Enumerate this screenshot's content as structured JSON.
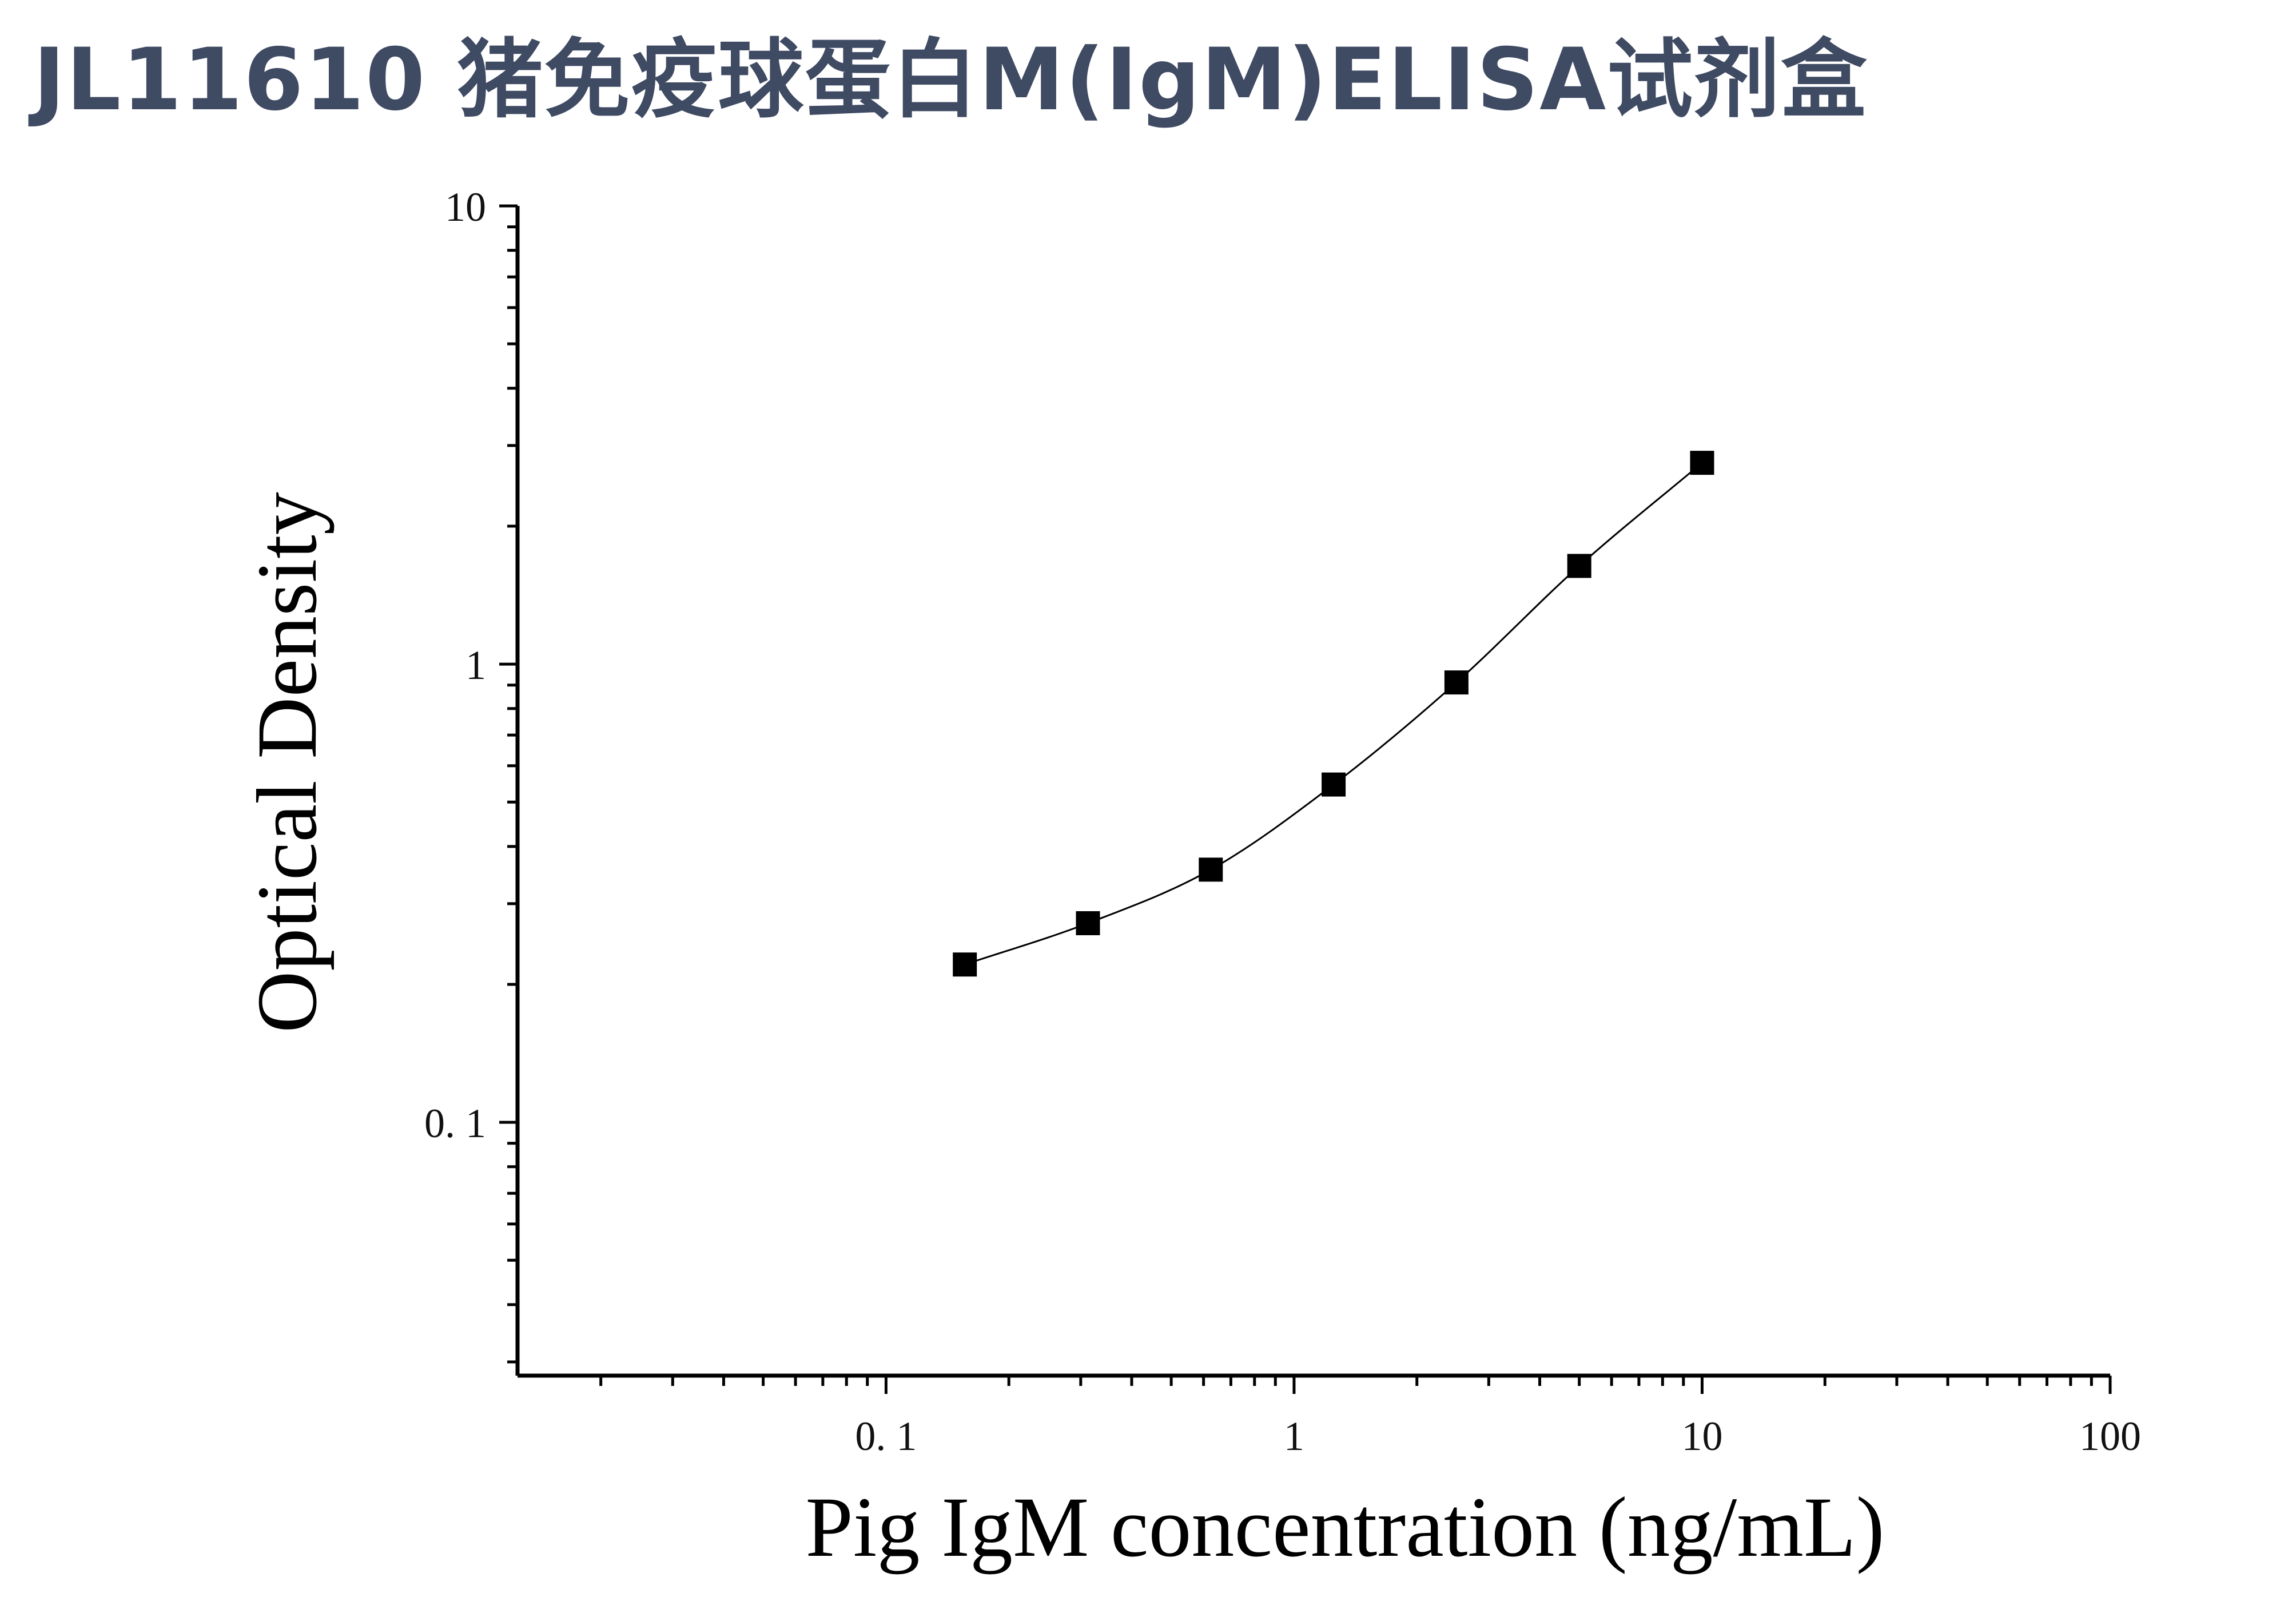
{
  "title": "JL11610 猪免疫球蛋白M(IgM)ELISA试剂盒",
  "colors": {
    "title": "#3f4a63",
    "axis": "#000000",
    "marker": "#000000",
    "curve": "#000000"
  },
  "chart_data": {
    "type": "scatter",
    "xscale": "log",
    "yscale": "log",
    "xlabel": "Pig IgM concentration (ng/mL)",
    "ylabel": "Optical Density",
    "xlim": [
      0.0125,
      100
    ],
    "ylim": [
      0.028,
      10
    ],
    "x_ticks": [
      {
        "value": 0.1,
        "label": "0. 1"
      },
      {
        "value": 1,
        "label": "1"
      },
      {
        "value": 10,
        "label": "10"
      },
      {
        "value": 100,
        "label": "100"
      }
    ],
    "y_ticks": [
      {
        "value": 0.1,
        "label": "0. 1"
      },
      {
        "value": 1,
        "label": "1"
      },
      {
        "value": 10,
        "label": "10"
      }
    ],
    "grid": false,
    "legend": "none",
    "marker": "square",
    "fit_line": true,
    "series": [
      {
        "x": [
          0.156,
          0.3125,
          0.625,
          1.25,
          2.5,
          5,
          10
        ],
        "y": [
          0.221,
          0.272,
          0.356,
          0.546,
          0.912,
          1.638,
          2.75
        ]
      }
    ]
  }
}
